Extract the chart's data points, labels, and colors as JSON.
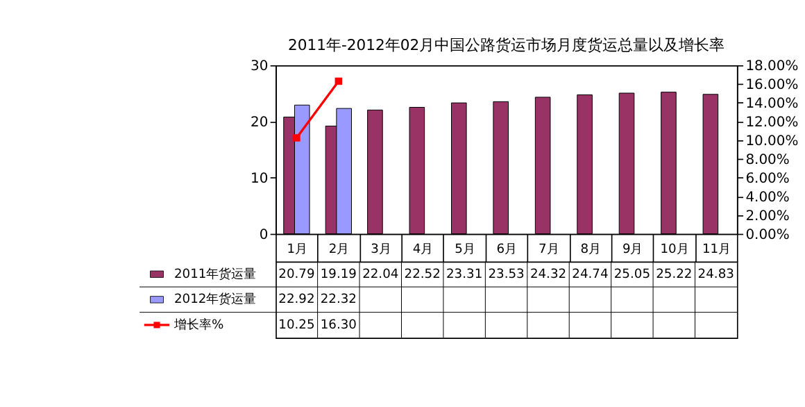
{
  "chart_data": {
    "type": "bar",
    "title": "2011年-2012年02月中国公路货运市场月度货运总量以及增长率",
    "categories": [
      "1月",
      "2月",
      "3月",
      "4月",
      "5月",
      "6月",
      "7月",
      "8月",
      "9月",
      "10月",
      "11月"
    ],
    "series": [
      {
        "name": "2011年货运量",
        "color": "#993366",
        "values": [
          20.79,
          19.19,
          22.04,
          22.52,
          23.31,
          23.53,
          24.32,
          24.74,
          25.05,
          25.22,
          24.83
        ],
        "value_labels": [
          "20.79",
          "19.19",
          "22.04",
          "22.52",
          "23.31",
          "23.53",
          "24.32",
          "24.74",
          "25.05",
          "25.22",
          "24.83"
        ]
      },
      {
        "name": "2012年货运量",
        "color": "#9999ff",
        "values": [
          22.92,
          22.32,
          null,
          null,
          null,
          null,
          null,
          null,
          null,
          null,
          null
        ],
        "value_labels": [
          "22.92",
          "22.32",
          null,
          null,
          null,
          null,
          null,
          null,
          null,
          null,
          null
        ]
      },
      {
        "name": "增长率%",
        "type": "line",
        "axis": "y2",
        "color": "#ff0000",
        "marker": "square",
        "values": [
          10.25,
          16.3,
          null,
          null,
          null,
          null,
          null,
          null,
          null,
          null,
          null
        ],
        "value_labels": [
          "10.25",
          "16.30",
          null,
          null,
          null,
          null,
          null,
          null,
          null,
          null,
          null
        ]
      }
    ],
    "ylim": [
      0,
      30
    ],
    "yticks": [
      0,
      10,
      20,
      30
    ],
    "y2lim": [
      0,
      18
    ],
    "y2ticks": [
      {
        "value": 0,
        "label": "0.00%"
      },
      {
        "value": 2,
        "label": "2.00%"
      },
      {
        "value": 4,
        "label": "4.00%"
      },
      {
        "value": 6,
        "label": "6.00%"
      },
      {
        "value": 8,
        "label": "8.00%"
      },
      {
        "value": 10,
        "label": "10.00%"
      },
      {
        "value": 12,
        "label": "12.00%"
      },
      {
        "value": 14,
        "label": "14.00%"
      },
      {
        "value": 16,
        "label": "16.00%"
      },
      {
        "value": 18,
        "label": "18.00%"
      }
    ],
    "grid": false,
    "legend": "bottom"
  }
}
